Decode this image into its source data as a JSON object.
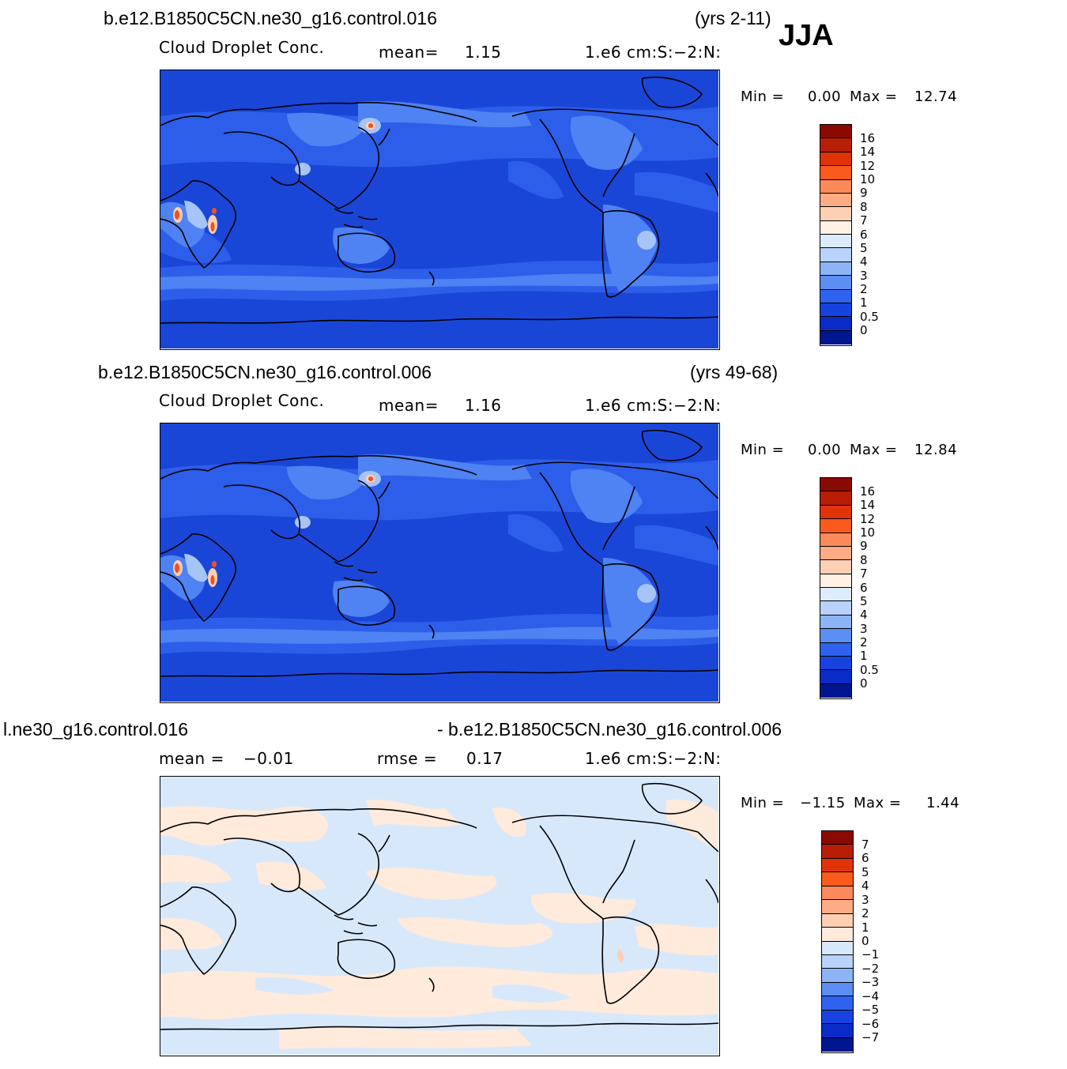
{
  "season": "JJA",
  "panels": [
    {
      "case_title": "b.e12.B1850C5CN.ne30_g16.control.016",
      "years": "(yrs 2-11)",
      "variable": "Cloud Droplet Conc.",
      "stat_label": "mean=",
      "stat_value": "1.15",
      "units": "1.e6 cm:S:−2:N:",
      "min_label": "Min =",
      "min_value": "0.00",
      "max_label": "Max =",
      "max_value": "12.74"
    },
    {
      "case_title": "b.e12.B1850C5CN.ne30_g16.control.006",
      "years": "(yrs 49-68)",
      "variable": "Cloud Droplet Conc.",
      "stat_label": "mean=",
      "stat_value": "1.16",
      "units": "1.e6 cm:S:−2:N:",
      "min_label": "Min =",
      "min_value": "0.00",
      "max_label": "Max =",
      "max_value": "12.84"
    },
    {
      "case_title": "l.ne30_g16.control.016",
      "case_title_right": "- b.e12.B1850C5CN.ne30_g16.control.006",
      "stat_label": "mean =",
      "stat_value": "−0.01",
      "rmse_label": "rmse =",
      "rmse_value": "0.17",
      "units": "1.e6 cm:S:−2:N:",
      "min_label": "Min =",
      "min_value": "−1.15",
      "max_label": "Max =",
      "max_value": "1.44"
    }
  ],
  "colorbars": {
    "absolute": {
      "labels": [
        "16",
        "14",
        "12",
        "10",
        "9",
        "8",
        "7",
        "6",
        "5",
        "4",
        "3",
        "2",
        "1",
        "0.5",
        "0"
      ],
      "colors": [
        "#8b0a00",
        "#b81e05",
        "#e03408",
        "#fa5a1e",
        "#fc8a5a",
        "#fdac84",
        "#fdd0b4",
        "#fff1e4",
        "#dcebfd",
        "#b8d2fb",
        "#8cb4f7",
        "#5c8ff4",
        "#2f63ef",
        "#1643e0",
        "#0a2bc8",
        "#001690"
      ]
    },
    "difference": {
      "labels": [
        "7",
        "6",
        "5",
        "4",
        "3",
        "2",
        "1",
        "0",
        "−1",
        "−2",
        "−3",
        "−4",
        "−5",
        "−6",
        "−7"
      ],
      "colors": [
        "#8b0a00",
        "#b81e05",
        "#e03408",
        "#fa5a1e",
        "#fc8a5a",
        "#fdac84",
        "#fdd0b4",
        "#ffeadc",
        "#d8e8fb",
        "#b8d2fb",
        "#8cb4f7",
        "#5c8ff4",
        "#2f63ef",
        "#1643e0",
        "#0a2bc8",
        "#001690"
      ]
    }
  },
  "map_colors": {
    "ocean_deep": "#1a46d8",
    "ocean_mid": "#2c5eea",
    "ocean_light": "#4f82f2",
    "high_light": "#a6c4f8",
    "hot_pale": "#fdd0b4",
    "hot_red": "#f0501e",
    "diff_blue": "#d8e8fb",
    "diff_peach": "#ffeadc"
  }
}
